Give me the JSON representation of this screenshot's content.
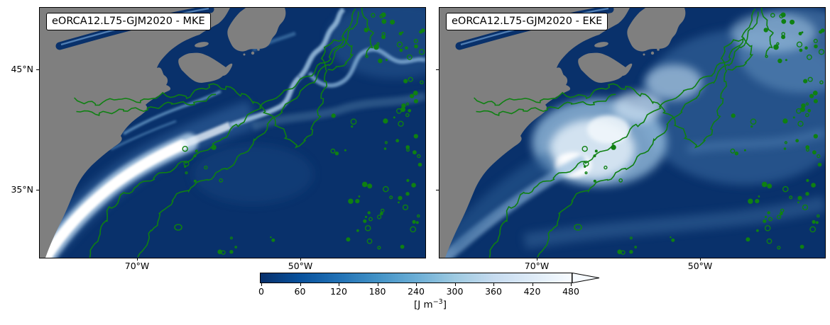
{
  "figure": {
    "kind": "two-panel ocean kinetic energy map",
    "background": "#ffffff"
  },
  "panels": [
    {
      "id": "mke",
      "title": "eORCA12.L75-GJM2020 - MKE"
    },
    {
      "id": "eke",
      "title": "eORCA12.L75-GJM2020 - EKE"
    }
  ],
  "axes": {
    "lat_tick_labels": [
      "45°N",
      "35°N"
    ],
    "lon_tick_labels": [
      "70°W",
      "50°W"
    ]
  },
  "colorbar": {
    "tick_labels": [
      "0",
      "60",
      "120",
      "180",
      "240",
      "300",
      "360",
      "420",
      "480"
    ],
    "unit_prefix": "[J m",
    "unit_exponent": "−3",
    "unit_suffix": "]",
    "range": [
      0,
      480
    ],
    "tick_step": 60,
    "extend": "max",
    "colormap": "Blues_r (dark blue = 0, white = high)"
  },
  "map_colors": {
    "ocean": "#09316b",
    "land": "#7f7f7f",
    "bathymetry_contour": "#0f8012",
    "high_energy": "#ffffff"
  },
  "chart_data": [
    {
      "type": "heatmap",
      "panel": "left",
      "title": "eORCA12.L75-GJM2020 - MKE",
      "quantity": "mean kinetic energy",
      "region": "Northwest Atlantic / Gulf Stream",
      "x_tick_labels": [
        "70°W",
        "50°W"
      ],
      "y_tick_labels": [
        "45°N",
        "35°N"
      ],
      "value_range": [
        0,
        480
      ],
      "units": "J m⁻³",
      "colormap": "Blues_r, saturating to white above 480",
      "notable_features": [
        "narrow intense white Gulf Stream jet hugging the US coast from the southwest corner, fading near 65°W",
        "thin light-blue North Atlantic Current meanders toward Grand Banks and northeast",
        "dark (low MKE) interior ocean",
        "green bathymetry contours along the shelf break, Grand Banks, seamounts, Bermuda and Mid-Atlantic Ridge",
        "gray land mask (US East Coast, Nova Scotia, Newfoundland, St. Lawrence)"
      ]
    },
    {
      "type": "heatmap",
      "panel": "right",
      "title": "eORCA12.L75-GJM2020 - EKE",
      "quantity": "eddy kinetic energy",
      "region": "Northwest Atlantic / Gulf Stream",
      "x_tick_labels": [
        "70°W",
        "50°W"
      ],
      "y_tick_labels": [
        "45°N",
        "35°N"
      ],
      "value_range": [
        0,
        480
      ],
      "units": "J m⁻³",
      "colormap": "Blues_r, saturating to white above 480",
      "notable_features": [
        "broad diffuse high-EKE (white/light blue) maximum in the Gulf Stream extension near 60°W, 38°N",
        "elevated EKE spreading northeast across the basin and around the Grand Banks",
        "same green bathymetry contours and gray land mask as left panel"
      ]
    }
  ]
}
